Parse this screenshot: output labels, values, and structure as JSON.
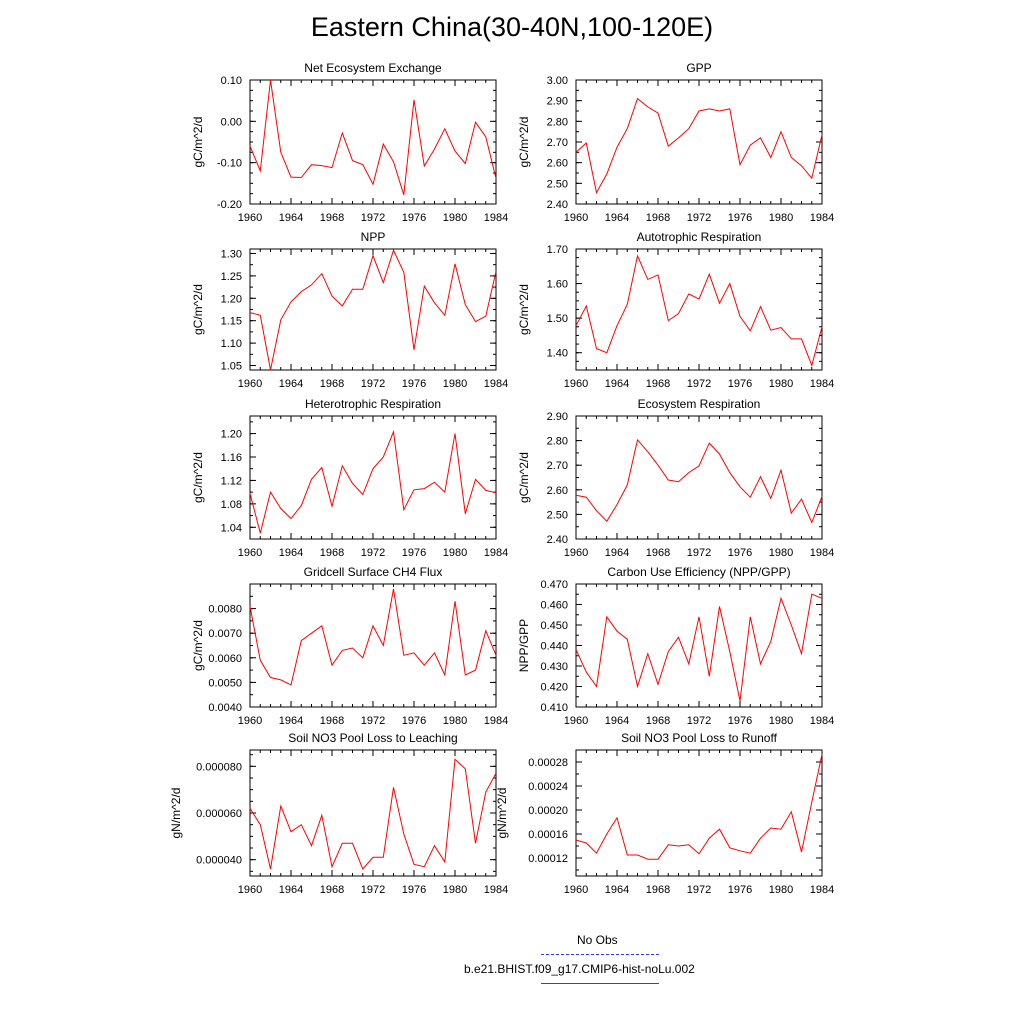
{
  "page": {
    "title": "Eastern China(30-40N,100-120E)"
  },
  "colors": {
    "model_line": "#ff0000",
    "obs_line": "#3333ff",
    "axis": "#000000"
  },
  "legend": {
    "obs_label": "No Obs",
    "model_label": "b.e21.BHIST.f09_g17.CMIP6-hist-noLu.002"
  },
  "chart_data": [
    {
      "type": "line",
      "title": "Net Ecosystem Exchange",
      "xlabel": "",
      "ylabel": "gC/m^2/d",
      "xlim": [
        1960,
        1984
      ],
      "ylim": [
        -0.2,
        0.1
      ],
      "xticks": [
        "1960",
        "1964",
        "1968",
        "1972",
        "1976",
        "1980",
        "1984"
      ],
      "yticks": [
        "-0.20",
        "-0.10",
        "0.00",
        "0.10"
      ],
      "yminor": [
        -0.2,
        -0.175,
        -0.15,
        -0.125,
        -0.1,
        -0.075,
        -0.05,
        -0.025,
        0,
        0.025,
        0.05,
        0.075,
        0.1
      ],
      "x": [
        1960,
        1961,
        1962,
        1963,
        1964,
        1965,
        1966,
        1967,
        1968,
        1969,
        1970,
        1971,
        1972,
        1973,
        1974,
        1975,
        1976,
        1977,
        1978,
        1979,
        1980,
        1981,
        1982,
        1983,
        1984
      ],
      "values": [
        -0.06,
        -0.12,
        0.1,
        -0.075,
        -0.135,
        -0.136,
        -0.105,
        -0.107,
        -0.112,
        -0.028,
        -0.095,
        -0.105,
        -0.152,
        -0.055,
        -0.098,
        -0.178,
        0.052,
        -0.108,
        -0.067,
        -0.018,
        -0.072,
        -0.102,
        -0.002,
        -0.038,
        -0.138
      ]
    },
    {
      "type": "line",
      "title": "GPP",
      "xlabel": "",
      "ylabel": "gC/m^2/d",
      "xlim": [
        1960,
        1984
      ],
      "ylim": [
        2.4,
        3.0
      ],
      "xticks": [
        "1960",
        "1964",
        "1968",
        "1972",
        "1976",
        "1980",
        "1984"
      ],
      "yticks": [
        "2.40",
        "2.50",
        "2.60",
        "2.70",
        "2.80",
        "2.90",
        "3.00"
      ],
      "yminor": [
        2.4,
        2.45,
        2.5,
        2.55,
        2.6,
        2.65,
        2.7,
        2.75,
        2.8,
        2.85,
        2.9,
        2.95,
        3.0
      ],
      "x": [
        1960,
        1961,
        1962,
        1963,
        1964,
        1965,
        1966,
        1967,
        1968,
        1969,
        1970,
        1971,
        1972,
        1973,
        1974,
        1975,
        1976,
        1977,
        1978,
        1979,
        1980,
        1981,
        1982,
        1983,
        1984
      ],
      "values": [
        2.65,
        2.695,
        2.455,
        2.545,
        2.675,
        2.765,
        2.91,
        2.87,
        2.84,
        2.68,
        2.72,
        2.765,
        2.85,
        2.86,
        2.85,
        2.86,
        2.59,
        2.685,
        2.72,
        2.625,
        2.75,
        2.625,
        2.585,
        2.525,
        2.735
      ]
    },
    {
      "type": "line",
      "title": "NPP",
      "xlabel": "",
      "ylabel": "gC/m^2/d",
      "xlim": [
        1960,
        1984
      ],
      "ylim": [
        1.04,
        1.31
      ],
      "xticks": [
        "1960",
        "1964",
        "1968",
        "1972",
        "1976",
        "1980",
        "1984"
      ],
      "yticks": [
        "1.05",
        "1.10",
        "1.15",
        "1.20",
        "1.25",
        "1.30"
      ],
      "yminor": [
        1.05,
        1.075,
        1.1,
        1.125,
        1.15,
        1.175,
        1.2,
        1.225,
        1.25,
        1.275,
        1.3
      ],
      "x": [
        1960,
        1961,
        1962,
        1963,
        1964,
        1965,
        1966,
        1967,
        1968,
        1969,
        1970,
        1971,
        1972,
        1973,
        1974,
        1975,
        1976,
        1977,
        1978,
        1979,
        1980,
        1981,
        1982,
        1983,
        1984
      ],
      "values": [
        1.168,
        1.162,
        1.04,
        1.152,
        1.192,
        1.215,
        1.23,
        1.255,
        1.205,
        1.183,
        1.22,
        1.22,
        1.295,
        1.235,
        1.307,
        1.258,
        1.085,
        1.227,
        1.19,
        1.162,
        1.277,
        1.186,
        1.148,
        1.16,
        1.26
      ]
    },
    {
      "type": "line",
      "title": "Autotrophic Respiration",
      "xlabel": "",
      "ylabel": "gC/m^2/d",
      "xlim": [
        1960,
        1984
      ],
      "ylim": [
        1.35,
        1.7
      ],
      "xticks": [
        "1960",
        "1964",
        "1968",
        "1972",
        "1976",
        "1980",
        "1984"
      ],
      "yticks": [
        "1.40",
        "1.50",
        "1.60",
        "1.70"
      ],
      "yminor": [
        1.35,
        1.375,
        1.4,
        1.425,
        1.45,
        1.475,
        1.5,
        1.525,
        1.55,
        1.575,
        1.6,
        1.625,
        1.65,
        1.675,
        1.7
      ],
      "x": [
        1960,
        1961,
        1962,
        1963,
        1964,
        1965,
        1966,
        1967,
        1968,
        1969,
        1970,
        1971,
        1972,
        1973,
        1974,
        1975,
        1976,
        1977,
        1978,
        1979,
        1980,
        1981,
        1982,
        1983,
        1984
      ],
      "values": [
        1.478,
        1.535,
        1.412,
        1.4,
        1.478,
        1.54,
        1.68,
        1.612,
        1.625,
        1.493,
        1.513,
        1.57,
        1.555,
        1.627,
        1.543,
        1.6,
        1.505,
        1.463,
        1.533,
        1.465,
        1.473,
        1.44,
        1.44,
        1.363,
        1.475
      ]
    },
    {
      "type": "line",
      "title": "Heterotrophic Respiration",
      "xlabel": "",
      "ylabel": "gC/m^2/d",
      "xlim": [
        1960,
        1984
      ],
      "ylim": [
        1.02,
        1.23
      ],
      "xticks": [
        "1960",
        "1964",
        "1968",
        "1972",
        "1976",
        "1980",
        "1984"
      ],
      "yticks": [
        "1.04",
        "1.08",
        "1.12",
        "1.16",
        "1.20"
      ],
      "yminor": [
        1.02,
        1.04,
        1.06,
        1.08,
        1.1,
        1.12,
        1.14,
        1.16,
        1.18,
        1.2,
        1.22
      ],
      "x": [
        1960,
        1961,
        1962,
        1963,
        1964,
        1965,
        1966,
        1967,
        1968,
        1969,
        1970,
        1971,
        1972,
        1973,
        1974,
        1975,
        1976,
        1977,
        1978,
        1979,
        1980,
        1981,
        1982,
        1983,
        1984
      ],
      "values": [
        1.098,
        1.03,
        1.1,
        1.072,
        1.055,
        1.077,
        1.122,
        1.142,
        1.076,
        1.145,
        1.115,
        1.096,
        1.14,
        1.16,
        1.203,
        1.07,
        1.104,
        1.106,
        1.117,
        1.1,
        1.2,
        1.063,
        1.122,
        1.103,
        1.099
      ]
    },
    {
      "type": "line",
      "title": "Ecosystem Respiration",
      "xlabel": "",
      "ylabel": "gC/m^2/d",
      "xlim": [
        1960,
        1984
      ],
      "ylim": [
        2.4,
        2.9
      ],
      "xticks": [
        "1960",
        "1964",
        "1968",
        "1972",
        "1976",
        "1980",
        "1984"
      ],
      "yticks": [
        "2.40",
        "2.50",
        "2.60",
        "2.70",
        "2.80",
        "2.90"
      ],
      "yminor": [
        2.4,
        2.45,
        2.5,
        2.55,
        2.6,
        2.65,
        2.7,
        2.75,
        2.8,
        2.85,
        2.9
      ],
      "x": [
        1960,
        1961,
        1962,
        1963,
        1964,
        1965,
        1966,
        1967,
        1968,
        1969,
        1970,
        1971,
        1972,
        1973,
        1974,
        1975,
        1976,
        1977,
        1978,
        1979,
        1980,
        1981,
        1982,
        1983,
        1984
      ],
      "values": [
        2.578,
        2.57,
        2.515,
        2.472,
        2.54,
        2.62,
        2.803,
        2.755,
        2.7,
        2.64,
        2.633,
        2.67,
        2.697,
        2.79,
        2.745,
        2.67,
        2.612,
        2.57,
        2.653,
        2.565,
        2.68,
        2.505,
        2.562,
        2.467,
        2.573
      ]
    },
    {
      "type": "line",
      "title": "Gridcell Surface CH4 Flux",
      "xlabel": "",
      "ylabel": "gC/m^2/d",
      "xlim": [
        1960,
        1984
      ],
      "ylim": [
        0.004,
        0.009
      ],
      "xticks": [
        "1960",
        "1964",
        "1968",
        "1972",
        "1976",
        "1980",
        "1984"
      ],
      "yticks": [
        "0.0040",
        "0.0050",
        "0.0060",
        "0.0070",
        "0.0080"
      ],
      "yminor": [
        0.004,
        0.0045,
        0.005,
        0.0055,
        0.006,
        0.0065,
        0.007,
        0.0075,
        0.008,
        0.0085,
        0.009
      ],
      "x": [
        1960,
        1961,
        1962,
        1963,
        1964,
        1965,
        1966,
        1967,
        1968,
        1969,
        1970,
        1971,
        1972,
        1973,
        1974,
        1975,
        1976,
        1977,
        1978,
        1979,
        1980,
        1981,
        1982,
        1983,
        1984
      ],
      "values": [
        0.0081,
        0.0059,
        0.0052,
        0.0051,
        0.0049,
        0.0067,
        0.007,
        0.0073,
        0.0057,
        0.0063,
        0.0064,
        0.006,
        0.0073,
        0.0065,
        0.0088,
        0.0061,
        0.0062,
        0.0057,
        0.0062,
        0.0053,
        0.0083,
        0.0053,
        0.0055,
        0.0071,
        0.0061
      ]
    },
    {
      "type": "line",
      "title": "Carbon Use Efficiency (NPP/GPP)",
      "xlabel": "",
      "ylabel": "NPP/GPP",
      "xlim": [
        1960,
        1984
      ],
      "ylim": [
        0.41,
        0.47
      ],
      "xticks": [
        "1960",
        "1964",
        "1968",
        "1972",
        "1976",
        "1980",
        "1984"
      ],
      "yticks": [
        "0.410",
        "0.420",
        "0.430",
        "0.440",
        "0.450",
        "0.460",
        "0.470"
      ],
      "yminor": [
        0.41,
        0.415,
        0.42,
        0.425,
        0.43,
        0.435,
        0.44,
        0.445,
        0.45,
        0.455,
        0.46,
        0.465,
        0.47
      ],
      "x": [
        1960,
        1961,
        1962,
        1963,
        1964,
        1965,
        1966,
        1967,
        1968,
        1969,
        1970,
        1971,
        1972,
        1973,
        1974,
        1975,
        1976,
        1977,
        1978,
        1979,
        1980,
        1981,
        1982,
        1983,
        1984
      ],
      "values": [
        0.438,
        0.427,
        0.42,
        0.454,
        0.447,
        0.443,
        0.42,
        0.436,
        0.421,
        0.437,
        0.444,
        0.431,
        0.454,
        0.425,
        0.459,
        0.437,
        0.413,
        0.454,
        0.431,
        0.442,
        0.463,
        0.45,
        0.436,
        0.465,
        0.463
      ]
    },
    {
      "type": "line",
      "title": "Soil NO3 Pool Loss to Leaching",
      "xlabel": "",
      "ylabel": "gN/m^2/d",
      "xlim": [
        1960,
        1984
      ],
      "ylim": [
        3.3e-05,
        8.7e-05
      ],
      "xticks": [
        "1960",
        "1964",
        "1968",
        "1972",
        "1976",
        "1980",
        "1984"
      ],
      "yticks": [
        "0.000040",
        "0.000060",
        "0.000080"
      ],
      "yminor": [
        3.5e-05,
        4e-05,
        4.5e-05,
        5e-05,
        5.5e-05,
        6e-05,
        6.5e-05,
        7e-05,
        7.5e-05,
        8e-05,
        8.5e-05
      ],
      "x": [
        1960,
        1961,
        1962,
        1963,
        1964,
        1965,
        1966,
        1967,
        1968,
        1969,
        1970,
        1971,
        1972,
        1973,
        1974,
        1975,
        1976,
        1977,
        1978,
        1979,
        1980,
        1981,
        1982,
        1983,
        1984
      ],
      "values": [
        6.2e-05,
        5.5e-05,
        3.6e-05,
        6.3e-05,
        5.2e-05,
        5.5e-05,
        4.6e-05,
        5.9e-05,
        3.7e-05,
        4.7e-05,
        4.7e-05,
        3.6e-05,
        4.1e-05,
        4.1e-05,
        7.1e-05,
        5.1e-05,
        3.8e-05,
        3.7e-05,
        4.6e-05,
        3.9e-05,
        8.3e-05,
        7.9e-05,
        4.7e-05,
        6.9e-05,
        7.7e-05
      ]
    },
    {
      "type": "line",
      "title": "Soil NO3 Pool Loss to Runoff",
      "xlabel": "",
      "ylabel": "gN/m^2/d",
      "xlim": [
        1960,
        1984
      ],
      "ylim": [
        9e-05,
        0.0003
      ],
      "xticks": [
        "1960",
        "1964",
        "1968",
        "1972",
        "1976",
        "1980",
        "1984"
      ],
      "yticks": [
        "0.00012",
        "0.00016",
        "0.00020",
        "0.00024",
        "0.00028"
      ],
      "yminor": [
        0.0001,
        0.00012,
        0.00014,
        0.00016,
        0.00018,
        0.0002,
        0.00022,
        0.00024,
        0.00026,
        0.00028,
        0.0003
      ],
      "x": [
        1960,
        1961,
        1962,
        1963,
        1964,
        1965,
        1966,
        1967,
        1968,
        1969,
        1970,
        1971,
        1972,
        1973,
        1974,
        1975,
        1976,
        1977,
        1978,
        1979,
        1980,
        1981,
        1982,
        1983,
        1984
      ],
      "values": [
        0.00015,
        0.000145,
        0.000128,
        0.00016,
        0.000187,
        0.000125,
        0.000125,
        0.000118,
        0.000118,
        0.000142,
        0.00014,
        0.000142,
        0.000127,
        0.000153,
        0.000168,
        0.000137,
        0.000132,
        0.000128,
        0.000153,
        0.00017,
        0.000168,
        0.000197,
        0.00013,
        0.000213,
        0.000293
      ]
    }
  ]
}
